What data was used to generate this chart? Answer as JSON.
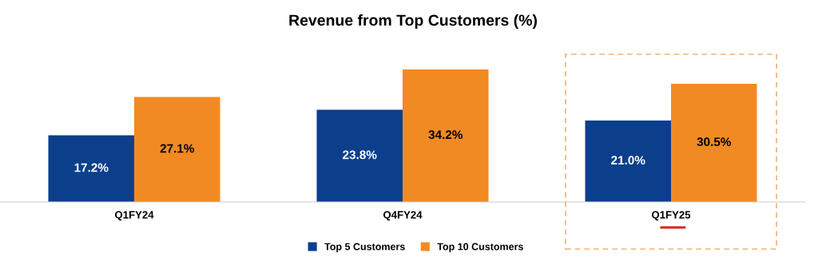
{
  "chart_data": {
    "type": "bar",
    "title": "Revenue from Top Customers (%)",
    "categories": [
      "Q1FY24",
      "Q4FY24",
      "Q1FY25"
    ],
    "series": [
      {
        "name": "Top 5 Customers",
        "color": "#0b3f8c",
        "values": [
          17.2,
          23.8,
          21.0
        ],
        "value_labels": [
          "17.2%",
          "23.8%",
          "21.0%"
        ]
      },
      {
        "name": "Top 10 Customers",
        "color": "#f28a23",
        "values": [
          27.1,
          34.2,
          30.5
        ],
        "value_labels": [
          "27.1%",
          "34.2%",
          "30.5%"
        ]
      }
    ],
    "legend": "bottom",
    "grid": false
  }
}
